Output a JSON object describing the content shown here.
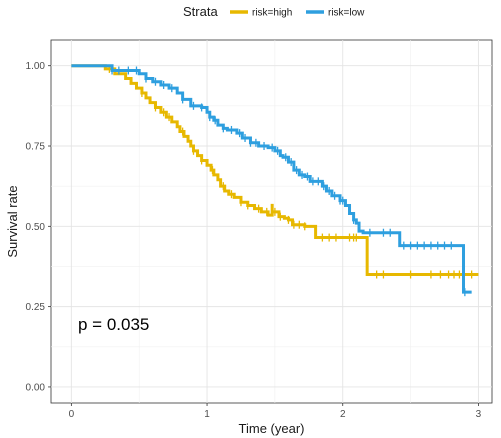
{
  "chart_data": {
    "type": "line",
    "subtype": "kaplan-meier step",
    "title": "",
    "xlabel": "Time (year)",
    "ylabel": "Survival rate",
    "xlim": [
      -0.15,
      3.1
    ],
    "ylim": [
      -0.05,
      1.08
    ],
    "x_ticks": [
      0,
      1,
      2,
      3
    ],
    "x_tick_labels": [
      "0",
      "1",
      "2",
      "3"
    ],
    "y_ticks": [
      0.0,
      0.25,
      0.5,
      0.75,
      1.0
    ],
    "y_tick_labels": [
      "0.00",
      "0.25",
      "0.50",
      "0.75",
      "1.00"
    ],
    "grid": true,
    "legend": {
      "title": "Strata",
      "position": "top",
      "entries": [
        "risk=high",
        "risk=low"
      ]
    },
    "annotation": "p = 0.035",
    "series": [
      {
        "name": "risk=high",
        "color": "#E7B800",
        "steps": [
          [
            0.0,
            1.0
          ],
          [
            0.25,
            0.99
          ],
          [
            0.32,
            0.975
          ],
          [
            0.4,
            0.96
          ],
          [
            0.44,
            0.945
          ],
          [
            0.48,
            0.93
          ],
          [
            0.52,
            0.915
          ],
          [
            0.55,
            0.9
          ],
          [
            0.58,
            0.885
          ],
          [
            0.62,
            0.87
          ],
          [
            0.66,
            0.855
          ],
          [
            0.7,
            0.84
          ],
          [
            0.74,
            0.825
          ],
          [
            0.78,
            0.81
          ],
          [
            0.8,
            0.795
          ],
          [
            0.83,
            0.78
          ],
          [
            0.86,
            0.765
          ],
          [
            0.88,
            0.75
          ],
          [
            0.9,
            0.735
          ],
          [
            0.93,
            0.72
          ],
          [
            0.96,
            0.705
          ],
          [
            1.0,
            0.69
          ],
          [
            1.03,
            0.675
          ],
          [
            1.05,
            0.66
          ],
          [
            1.08,
            0.645
          ],
          [
            1.1,
            0.625
          ],
          [
            1.13,
            0.61
          ],
          [
            1.16,
            0.6
          ],
          [
            1.2,
            0.59
          ],
          [
            1.25,
            0.575
          ],
          [
            1.3,
            0.565
          ],
          [
            1.35,
            0.555
          ],
          [
            1.4,
            0.545
          ],
          [
            1.45,
            0.535
          ],
          [
            1.48,
            0.57
          ],
          [
            1.48,
            0.545
          ],
          [
            1.5,
            0.545
          ],
          [
            1.53,
            0.53
          ],
          [
            1.57,
            0.525
          ],
          [
            1.6,
            0.52
          ],
          [
            1.63,
            0.505
          ],
          [
            1.68,
            0.505
          ],
          [
            1.72,
            0.5
          ],
          [
            1.76,
            0.5
          ],
          [
            1.8,
            0.465
          ],
          [
            2.02,
            0.465
          ],
          [
            2.18,
            0.35
          ],
          [
            3.0,
            0.35
          ]
        ],
        "censor_times": [
          0.28,
          0.52,
          0.62,
          0.68,
          0.72,
          0.82,
          0.9,
          0.96,
          1.04,
          1.12,
          1.18,
          1.25,
          1.3,
          1.38,
          1.44,
          1.5,
          1.54,
          1.6,
          1.64,
          1.68,
          1.72,
          1.85,
          1.9,
          1.95,
          2.05,
          2.08,
          2.1,
          2.25,
          2.3,
          2.5,
          2.65,
          2.72,
          2.78,
          2.82,
          2.86,
          2.95
        ]
      },
      {
        "name": "risk=low",
        "color": "#2E9FDF",
        "steps": [
          [
            0.0,
            1.0
          ],
          [
            0.3,
            0.985
          ],
          [
            0.5,
            0.975
          ],
          [
            0.55,
            0.96
          ],
          [
            0.6,
            0.95
          ],
          [
            0.66,
            0.94
          ],
          [
            0.72,
            0.93
          ],
          [
            0.78,
            0.915
          ],
          [
            0.82,
            0.895
          ],
          [
            0.88,
            0.875
          ],
          [
            0.96,
            0.87
          ],
          [
            1.0,
            0.855
          ],
          [
            1.02,
            0.84
          ],
          [
            1.05,
            0.83
          ],
          [
            1.08,
            0.815
          ],
          [
            1.12,
            0.805
          ],
          [
            1.15,
            0.8
          ],
          [
            1.22,
            0.79
          ],
          [
            1.26,
            0.775
          ],
          [
            1.32,
            0.76
          ],
          [
            1.38,
            0.75
          ],
          [
            1.45,
            0.745
          ],
          [
            1.5,
            0.735
          ],
          [
            1.54,
            0.72
          ],
          [
            1.56,
            0.715
          ],
          [
            1.6,
            0.7
          ],
          [
            1.64,
            0.675
          ],
          [
            1.68,
            0.66
          ],
          [
            1.72,
            0.655
          ],
          [
            1.76,
            0.64
          ],
          [
            1.82,
            0.64
          ],
          [
            1.85,
            0.625
          ],
          [
            1.88,
            0.61
          ],
          [
            1.92,
            0.595
          ],
          [
            1.98,
            0.58
          ],
          [
            2.02,
            0.565
          ],
          [
            2.05,
            0.54
          ],
          [
            2.08,
            0.52
          ],
          [
            2.1,
            0.51
          ],
          [
            2.12,
            0.485
          ],
          [
            2.15,
            0.48
          ],
          [
            2.42,
            0.44
          ],
          [
            2.85,
            0.44
          ],
          [
            2.89,
            0.295
          ],
          [
            2.95,
            0.295
          ]
        ],
        "censor_times": [
          0.3,
          0.35,
          0.42,
          0.48,
          0.55,
          0.62,
          0.68,
          0.74,
          0.82,
          0.9,
          0.96,
          1.02,
          1.06,
          1.12,
          1.18,
          1.24,
          1.28,
          1.32,
          1.36,
          1.42,
          1.48,
          1.52,
          1.58,
          1.62,
          1.66,
          1.7,
          1.74,
          1.78,
          1.82,
          1.86,
          1.9,
          1.94,
          1.98,
          2.0,
          2.08,
          2.2,
          2.3,
          2.35,
          2.45,
          2.5,
          2.55,
          2.6,
          2.65,
          2.7,
          2.75,
          2.8,
          2.9
        ]
      }
    ]
  }
}
